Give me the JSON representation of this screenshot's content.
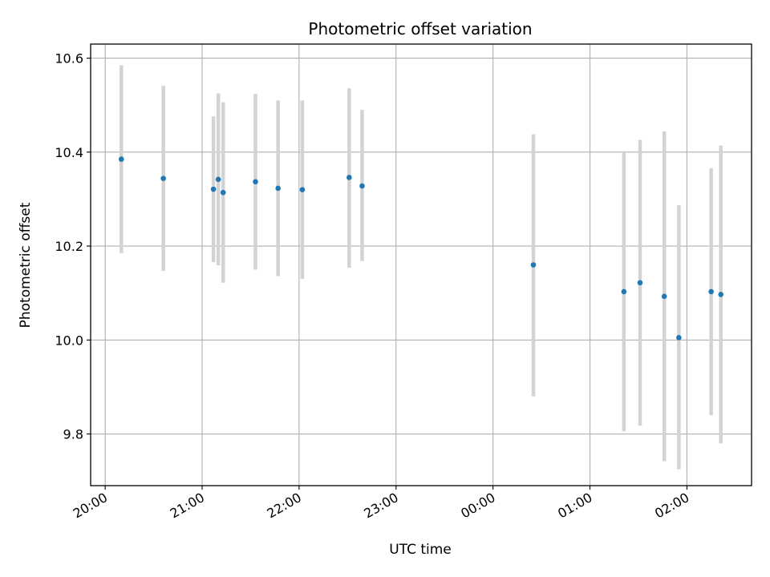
{
  "chart_data": {
    "type": "scatter",
    "title": "Photometric offset variation",
    "xlabel": "UTC time",
    "ylabel": "Photometric offset",
    "x_tick_labels": [
      "20:00",
      "21:00",
      "22:00",
      "23:00",
      "00:00",
      "01:00",
      "02:00"
    ],
    "y_tick_labels": [
      "9.8",
      "10.0",
      "10.2",
      "10.4",
      "10.6"
    ],
    "y_ticks": [
      9.8,
      10.0,
      10.2,
      10.4,
      10.6
    ],
    "ylim": [
      9.69,
      10.63
    ],
    "xlim": [
      "19:51",
      "02:40"
    ],
    "grid": true,
    "colors": {
      "point": "#1f77b4",
      "errorbar": "#d3d3d3",
      "grid": "#b0b0b0"
    },
    "series": [
      {
        "points": [
          {
            "x": "20:10",
            "y": 10.385,
            "ylow": 10.185,
            "yhigh": 10.585
          },
          {
            "x": "20:36",
            "y": 10.344,
            "ylow": 10.147,
            "yhigh": 10.541
          },
          {
            "x": "21:07",
            "y": 10.321,
            "ylow": 10.166,
            "yhigh": 10.476
          },
          {
            "x": "21:10",
            "y": 10.342,
            "ylow": 10.159,
            "yhigh": 10.525
          },
          {
            "x": "21:13",
            "y": 10.314,
            "ylow": 10.122,
            "yhigh": 10.506
          },
          {
            "x": "21:33",
            "y": 10.337,
            "ylow": 10.15,
            "yhigh": 10.524
          },
          {
            "x": "21:47",
            "y": 10.323,
            "ylow": 10.136,
            "yhigh": 10.51
          },
          {
            "x": "22:02",
            "y": 10.32,
            "ylow": 10.13,
            "yhigh": 10.51
          },
          {
            "x": "22:31",
            "y": 10.346,
            "ylow": 10.154,
            "yhigh": 10.536
          },
          {
            "x": "22:39",
            "y": 10.328,
            "ylow": 10.168,
            "yhigh": 10.49
          },
          {
            "x": "00:25",
            "y": 10.16,
            "ylow": 9.88,
            "yhigh": 10.438
          },
          {
            "x": "01:21",
            "y": 10.103,
            "ylow": 9.806,
            "yhigh": 10.4
          },
          {
            "x": "01:31",
            "y": 10.122,
            "ylow": 9.818,
            "yhigh": 10.426
          },
          {
            "x": "01:46",
            "y": 10.093,
            "ylow": 9.742,
            "yhigh": 10.444
          },
          {
            "x": "01:55",
            "y": 10.005,
            "ylow": 9.725,
            "yhigh": 10.287
          },
          {
            "x": "02:15",
            "y": 10.103,
            "ylow": 9.84,
            "yhigh": 10.366
          },
          {
            "x": "02:21",
            "y": 10.097,
            "ylow": 9.78,
            "yhigh": 10.414
          }
        ]
      }
    ]
  }
}
